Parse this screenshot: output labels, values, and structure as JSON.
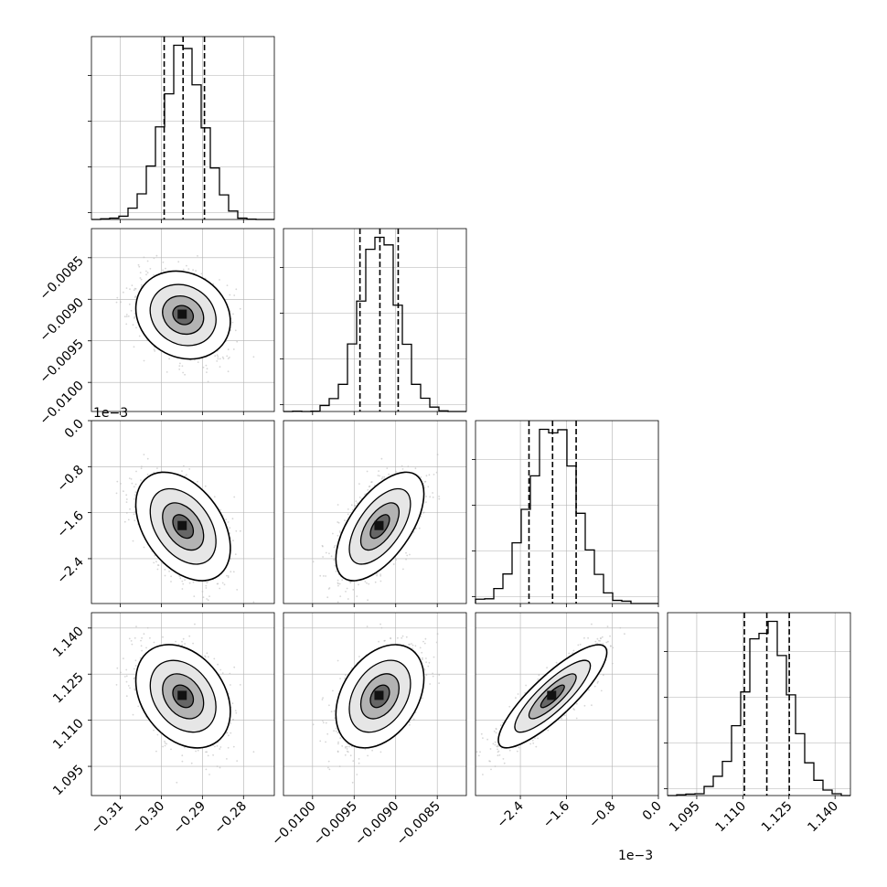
{
  "chart_data": {
    "type": "scatter",
    "kind": "corner-plot",
    "parameters": [
      {
        "index": 0,
        "range": [
          -0.317,
          -0.2725
        ],
        "ticks": [
          -0.31,
          -0.3,
          -0.29,
          -0.28
        ],
        "tick_labels": [
          "−0.31",
          "−0.30",
          "−0.29",
          "−0.28"
        ],
        "offset_label": "",
        "median": -0.2947,
        "q16": -0.2993,
        "q84": -0.2895,
        "sigma": 0.005
      },
      {
        "index": 1,
        "range": [
          -0.01035,
          -0.00815
        ],
        "ticks": [
          -0.01,
          -0.0095,
          -0.009,
          -0.0085
        ],
        "tick_labels": [
          "−0.0100",
          "−0.0095",
          "−0.0090",
          "−0.0085"
        ],
        "offset_label": "",
        "median": -0.00919,
        "q16": -0.00943,
        "q84": -0.00897,
        "sigma": 0.00023
      },
      {
        "index": 2,
        "range": [
          -0.00318,
          0.0
        ],
        "ticks": [
          -0.0024,
          -0.0016,
          -0.0008,
          0.0
        ],
        "tick_labels": [
          "−2.4",
          "−1.6",
          "−0.8",
          "0.0"
        ],
        "offset_label": "1e−3",
        "median": -0.00184,
        "q16": -0.00225,
        "q84": -0.00143,
        "sigma": 0.00041
      },
      {
        "index": 3,
        "range": [
          1.0855,
          1.145
        ],
        "ticks": [
          1.095,
          1.11,
          1.125,
          1.14
        ],
        "tick_labels": [
          "1.095",
          "1.110",
          "1.125",
          "1.140"
        ],
        "offset_label": "",
        "median": 1.1178,
        "q16": 1.1105,
        "q84": 1.1251,
        "sigma": 0.0073
      }
    ],
    "correlations": [
      [
        0,
        1,
        -0.15
      ],
      [
        0,
        2,
        -0.4
      ],
      [
        1,
        2,
        0.6
      ],
      [
        0,
        3,
        -0.3
      ],
      [
        1,
        3,
        0.35
      ],
      [
        2,
        3,
        0.85
      ]
    ],
    "histogram_y_ticks": 4,
    "grid": true,
    "colors": {
      "line": "#000000",
      "points": "#bbbbbb",
      "grid": "#b0b0b0",
      "density": "#000000"
    }
  }
}
